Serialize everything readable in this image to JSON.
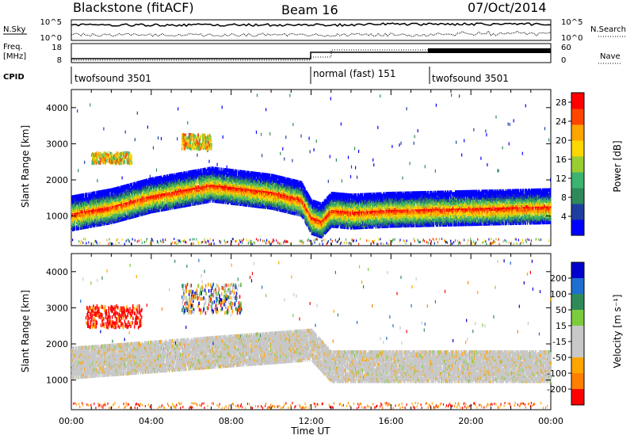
{
  "header": {
    "title": "Blackstone (fitACF)",
    "beam": "Beam 16",
    "date": "07/Oct/2014",
    "nsky_label": "N.Sky",
    "nsearch_label": "N.Search",
    "freq_label_1": "Freq.",
    "freq_label_2": "[MHz]",
    "nave_label": "Nave",
    "cpid_label": "CPID",
    "nsky_ticks": [
      "10^5",
      "10^0"
    ],
    "nsearch_ticks": [
      "10^5",
      "10^0"
    ],
    "freq_ticks": [
      "18",
      "8"
    ],
    "nave_ticks": [
      "60",
      "0"
    ]
  },
  "cpid_segments": [
    {
      "label": "twofsound 3501",
      "start_h": 0,
      "end_h": 12
    },
    {
      "label": "normal (fast) 151",
      "start_h": 12,
      "end_h": 18
    },
    {
      "label": "twofsound 3501",
      "start_h": 18,
      "end_h": 24
    }
  ],
  "colors": {
    "power_scale": [
      "#0000ff",
      "#1e3fa0",
      "#2e8a5a",
      "#3cb371",
      "#9acd32",
      "#ffd700",
      "#ffa500",
      "#ff4500",
      "#ff0000"
    ],
    "velocity_scale": [
      "#0000cc",
      "#1e6fd0",
      "#2e8b57",
      "#7ccd3c",
      "#c8c8c8",
      "#c8c8c8",
      "#ffa500",
      "#ff7f00",
      "#ff0000"
    ]
  },
  "chart_data": [
    {
      "type": "heatmap",
      "title": "",
      "xlabel": "Time UT",
      "ylabel": "Slant Range [km]",
      "xlim": [
        0,
        24
      ],
      "ylim": [
        180,
        4500
      ],
      "x_tick_labels": [
        "00:00",
        "04:00",
        "08:00",
        "12:00",
        "16:00",
        "20:00",
        "00:00"
      ],
      "y_ticks": [
        1000,
        2000,
        3000,
        4000
      ],
      "colorbar": {
        "label": "Power [dB]",
        "ticks": [
          4,
          8,
          12,
          16,
          20,
          24,
          28
        ],
        "range": [
          0,
          30
        ]
      },
      "features": [
        {
          "name": "main band",
          "x": [
            0,
            2,
            4,
            7,
            10,
            11.5,
            12,
            12.5,
            13,
            14,
            16,
            20,
            24
          ],
          "y": [
            1100,
            1300,
            1600,
            1900,
            1700,
            1500,
            1000,
            900,
            1200,
            1150,
            1200,
            1250,
            1300
          ]
        },
        {
          "name": "patch",
          "x": [
            5.5,
            7.0
          ],
          "y": [
            2900,
            3300
          ]
        },
        {
          "name": "patch",
          "x": [
            1.0,
            3.0
          ],
          "y": [
            2500,
            2800
          ]
        }
      ]
    },
    {
      "type": "heatmap",
      "title": "",
      "xlabel": "Time UT",
      "ylabel": "Slant Range [km]",
      "xlim": [
        0,
        24
      ],
      "ylim": [
        180,
        4500
      ],
      "x_tick_labels": [
        "00:00",
        "04:00",
        "08:00",
        "12:00",
        "16:00",
        "20:00",
        "00:00"
      ],
      "y_ticks": [
        1000,
        2000,
        3000,
        4000
      ],
      "colorbar": {
        "label": "Velocity [m s⁻¹]",
        "ticks": [
          200,
          100,
          50,
          15,
          -15,
          -50,
          -100,
          -200
        ]
      },
      "features": [
        {
          "name": "red patch",
          "x": [
            0.7,
            3.5
          ],
          "y": [
            2500,
            3100
          ]
        },
        {
          "name": "multicolour patch",
          "x": [
            5.5,
            8.5
          ],
          "y": [
            2900,
            3700
          ]
        },
        {
          "name": "ground scatter band",
          "x": [
            0,
            12,
            13,
            24
          ],
          "y": [
            1500,
            2000,
            1400,
            1400
          ]
        }
      ]
    }
  ]
}
